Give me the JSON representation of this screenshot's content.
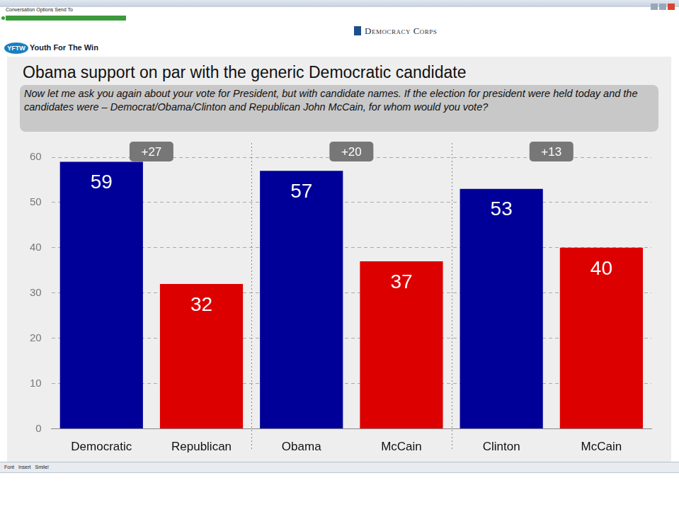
{
  "page": {
    "menu": [
      "Conversation",
      "Options",
      "Send To"
    ],
    "badge": "YFTW",
    "header": "Youth For The Win",
    "logo": "Democracy Corps",
    "toolbar": [
      "Font",
      "Insert",
      "Smile!"
    ]
  },
  "chart_data": {
    "type": "bar",
    "title": "Obama support on par with the generic Democratic candidate",
    "subtitle": "Now let me ask you again about your vote for President, but with candidate names. If the election for president were held today and the candidates were – Democrat/Obama/Clinton and Republican John McCain, for whom would you vote?",
    "categories": [
      "Democratic",
      "Republican",
      "Obama",
      "McCain",
      "Clinton",
      "McCain"
    ],
    "values": [
      59,
      32,
      57,
      37,
      53,
      40
    ],
    "colors": [
      "#000099",
      "#dd0000",
      "#000099",
      "#dd0000",
      "#000099",
      "#dd0000"
    ],
    "annotations": [
      "+27",
      "+20",
      "+13"
    ],
    "ylim": [
      0,
      60
    ],
    "yticks": [
      0,
      10,
      20,
      30,
      40,
      50,
      60
    ],
    "grid": true,
    "data_labels": true
  }
}
